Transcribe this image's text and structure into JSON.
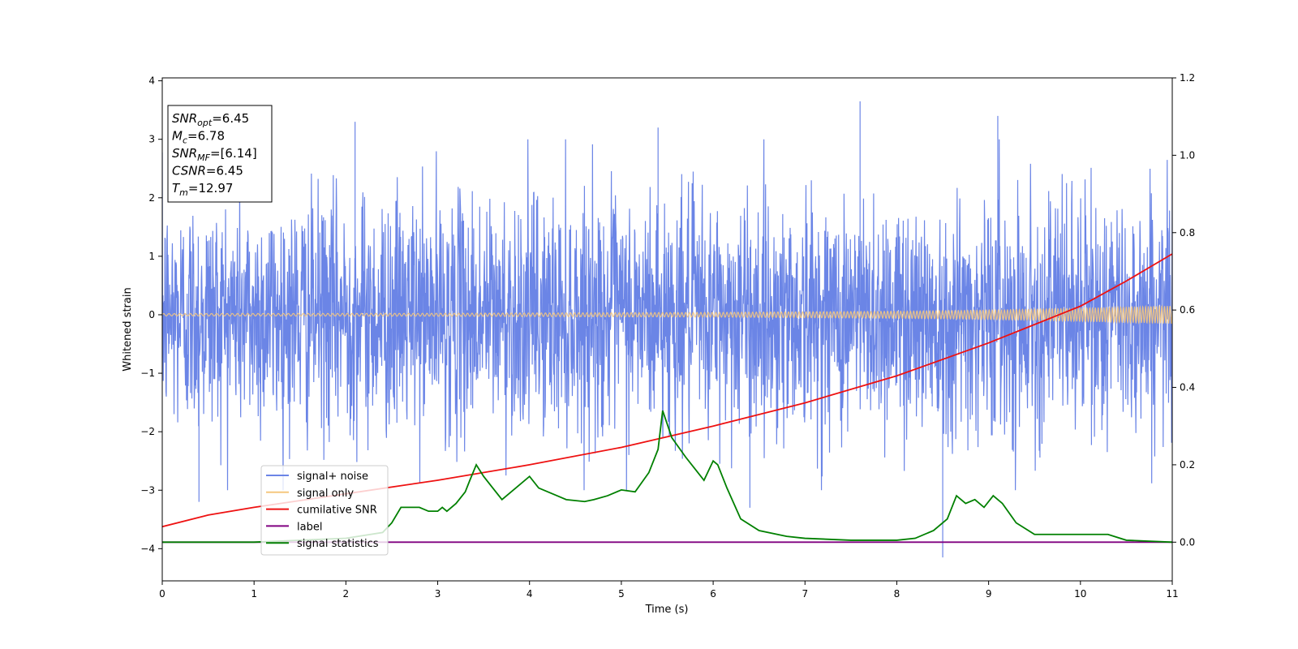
{
  "chart_data": {
    "type": "line",
    "xlabel": "Time (s)",
    "ylabel": "Whitened strain",
    "xlim": [
      0,
      11
    ],
    "ylim_left": [
      -4.55,
      4.05
    ],
    "ylim_right": [
      -0.1,
      1.2
    ],
    "xticks": [
      "0",
      "1",
      "2",
      "3",
      "4",
      "5",
      "6",
      "7",
      "8",
      "9",
      "10",
      "11"
    ],
    "yticks_left": [
      "−4",
      "−3",
      "−2",
      "−1",
      "0",
      "1",
      "2",
      "3",
      "4"
    ],
    "yticks_right": [
      "0.0",
      "0.2",
      "0.4",
      "0.6",
      "0.8",
      "1.0",
      "1.2"
    ],
    "grid": false,
    "legend_position": "lower-left",
    "info_box": {
      "lines": [
        {
          "symbol": "SNR",
          "sub": "opt",
          "value": "=6.45"
        },
        {
          "symbol": "M",
          "sub": "c",
          "value": "=6.78"
        },
        {
          "symbol": "SNR",
          "sub": "MF",
          "value": "=[6.14]"
        },
        {
          "symbol": "CSNR",
          "sub": "",
          "value": "=6.45"
        },
        {
          "symbol": "T",
          "sub": "m",
          "value": "=12.97"
        }
      ]
    },
    "series": [
      {
        "name": "signal+ noise",
        "axis": "left",
        "color": "#6b85e6",
        "kind": "noise",
        "sigma": 1.0,
        "notable_peaks": [
          [
            2.1,
            3.3
          ],
          [
            7.6,
            3.65
          ],
          [
            9.1,
            3.4
          ],
          [
            5.4,
            3.2
          ],
          [
            0.4,
            -3.2
          ],
          [
            8.5,
            -4.15
          ],
          [
            6.4,
            -3.3
          ]
        ]
      },
      {
        "name": "signal only",
        "axis": "left",
        "color": "#f5c77e",
        "kind": "chirp",
        "amplitude_points": [
          [
            0,
            0.02
          ],
          [
            3,
            0.025
          ],
          [
            6,
            0.04
          ],
          [
            8,
            0.06
          ],
          [
            9,
            0.08
          ],
          [
            10,
            0.11
          ],
          [
            11,
            0.15
          ]
        ]
      },
      {
        "name": "cumilative SNR",
        "axis": "right",
        "color": "#ee1111",
        "points": [
          [
            0,
            0.04
          ],
          [
            0.5,
            0.07
          ],
          [
            1,
            0.09
          ],
          [
            2,
            0.125
          ],
          [
            3,
            0.16
          ],
          [
            4,
            0.2
          ],
          [
            5,
            0.245
          ],
          [
            6,
            0.3
          ],
          [
            7,
            0.36
          ],
          [
            8,
            0.43
          ],
          [
            9,
            0.515
          ],
          [
            10,
            0.61
          ],
          [
            10.5,
            0.675
          ],
          [
            11,
            0.745
          ]
        ]
      },
      {
        "name": "label",
        "axis": "right",
        "color": "#800080",
        "points": [
          [
            0,
            0.0
          ],
          [
            11,
            0.0
          ]
        ]
      },
      {
        "name": "signal statistics",
        "axis": "right",
        "color": "#008000",
        "points": [
          [
            0,
            0.0
          ],
          [
            1,
            0.0
          ],
          [
            2,
            0.01
          ],
          [
            2.4,
            0.025
          ],
          [
            2.5,
            0.05
          ],
          [
            2.6,
            0.09
          ],
          [
            2.7,
            0.09
          ],
          [
            2.8,
            0.09
          ],
          [
            2.9,
            0.08
          ],
          [
            3.0,
            0.08
          ],
          [
            3.05,
            0.09
          ],
          [
            3.1,
            0.08
          ],
          [
            3.2,
            0.1
          ],
          [
            3.3,
            0.13
          ],
          [
            3.35,
            0.16
          ],
          [
            3.42,
            0.2
          ],
          [
            3.5,
            0.17
          ],
          [
            3.6,
            0.14
          ],
          [
            3.7,
            0.11
          ],
          [
            3.85,
            0.14
          ],
          [
            4.0,
            0.17
          ],
          [
            4.1,
            0.14
          ],
          [
            4.2,
            0.13
          ],
          [
            4.3,
            0.12
          ],
          [
            4.4,
            0.11
          ],
          [
            4.6,
            0.105
          ],
          [
            4.7,
            0.11
          ],
          [
            4.85,
            0.12
          ],
          [
            5.0,
            0.135
          ],
          [
            5.15,
            0.13
          ],
          [
            5.3,
            0.18
          ],
          [
            5.4,
            0.24
          ],
          [
            5.45,
            0.34
          ],
          [
            5.55,
            0.27
          ],
          [
            5.7,
            0.22
          ],
          [
            5.8,
            0.19
          ],
          [
            5.9,
            0.16
          ],
          [
            6.0,
            0.21
          ],
          [
            6.05,
            0.2
          ],
          [
            6.15,
            0.14
          ],
          [
            6.3,
            0.06
          ],
          [
            6.5,
            0.03
          ],
          [
            6.8,
            0.015
          ],
          [
            7.0,
            0.01
          ],
          [
            7.5,
            0.005
          ],
          [
            8.0,
            0.005
          ],
          [
            8.2,
            0.01
          ],
          [
            8.4,
            0.03
          ],
          [
            8.55,
            0.06
          ],
          [
            8.65,
            0.12
          ],
          [
            8.75,
            0.1
          ],
          [
            8.85,
            0.11
          ],
          [
            8.95,
            0.09
          ],
          [
            9.05,
            0.12
          ],
          [
            9.15,
            0.1
          ],
          [
            9.3,
            0.05
          ],
          [
            9.5,
            0.02
          ],
          [
            10.0,
            0.02
          ],
          [
            10.3,
            0.02
          ],
          [
            10.5,
            0.005
          ],
          [
            11,
            0.0
          ]
        ]
      }
    ]
  }
}
